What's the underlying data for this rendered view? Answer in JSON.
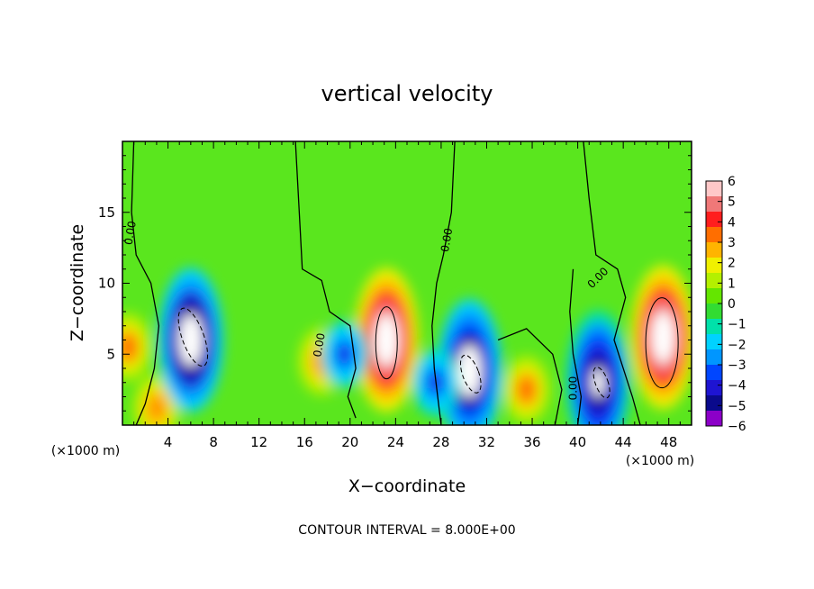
{
  "chart_data": {
    "type": "heatmap",
    "title": "vertical velocity",
    "xlabel": "X−coordinate",
    "ylabel": "Z−coordinate",
    "x_unit_label_left": "(×1000 m)",
    "x_unit_label_right": "(×1000 m)",
    "xlim": [
      0,
      50
    ],
    "ylim": [
      0,
      20
    ],
    "x_ticks": [
      4,
      8,
      12,
      16,
      20,
      24,
      28,
      32,
      36,
      40,
      44,
      48
    ],
    "x_tick_labels": [
      "4",
      "8",
      "12",
      "16",
      "20",
      "24",
      "28",
      "32",
      "36",
      "40",
      "44",
      "48"
    ],
    "y_ticks": [
      5,
      10,
      15
    ],
    "y_tick_labels": [
      "5",
      "10",
      "15"
    ],
    "footer": "CONTOUR INTERVAL = 8.000E+00",
    "contour_label": "0.00",
    "colorbar": {
      "levels": [
        6,
        5,
        4,
        3,
        2,
        1,
        0,
        -1,
        -2,
        -3,
        -4,
        -5,
        -6
      ],
      "labels": [
        "6",
        "5",
        "4",
        "3",
        "2",
        "1",
        "0",
        "−1",
        "−2",
        "−3",
        "−4",
        "−5",
        "−6"
      ],
      "colors": [
        "#ffc8c8",
        "#f07878",
        "#ff1e1e",
        "#ff6e00",
        "#ffb400",
        "#f0f000",
        "#b4f000",
        "#64e600",
        "#32dc32",
        "#00e1aa",
        "#00d2ff",
        "#0096ff",
        "#0046ff",
        "#1e14d2",
        "#0a0a8c",
        "#8c00c8"
      ]
    },
    "features": [
      {
        "kind": "updraft",
        "x": 23.2,
        "z": 6.0,
        "peak": 9
      },
      {
        "kind": "updraft",
        "x": 47.5,
        "z": 6.2,
        "peak": 9
      },
      {
        "kind": "updraft",
        "x": 0.5,
        "z": 5.5,
        "peak": 4.5
      },
      {
        "kind": "updraft",
        "x": 17.5,
        "z": 4.5,
        "peak": 4
      },
      {
        "kind": "updraft",
        "x": 35.5,
        "z": 2.5,
        "peak": 4.5
      },
      {
        "kind": "updraft",
        "x": 3.0,
        "z": 1.2,
        "peak": 4
      },
      {
        "kind": "downdraft",
        "x": 6.0,
        "z": 6.0,
        "peak": -9
      },
      {
        "kind": "downdraft",
        "x": 30.5,
        "z": 3.8,
        "peak": -8
      },
      {
        "kind": "downdraft",
        "x": 41.8,
        "z": 3.0,
        "peak": -7
      },
      {
        "kind": "downdraft",
        "x": 19.5,
        "z": 5.0,
        "peak": -5
      },
      {
        "kind": "downdraft",
        "x": 27.5,
        "z": 3.0,
        "peak": -5
      }
    ]
  }
}
